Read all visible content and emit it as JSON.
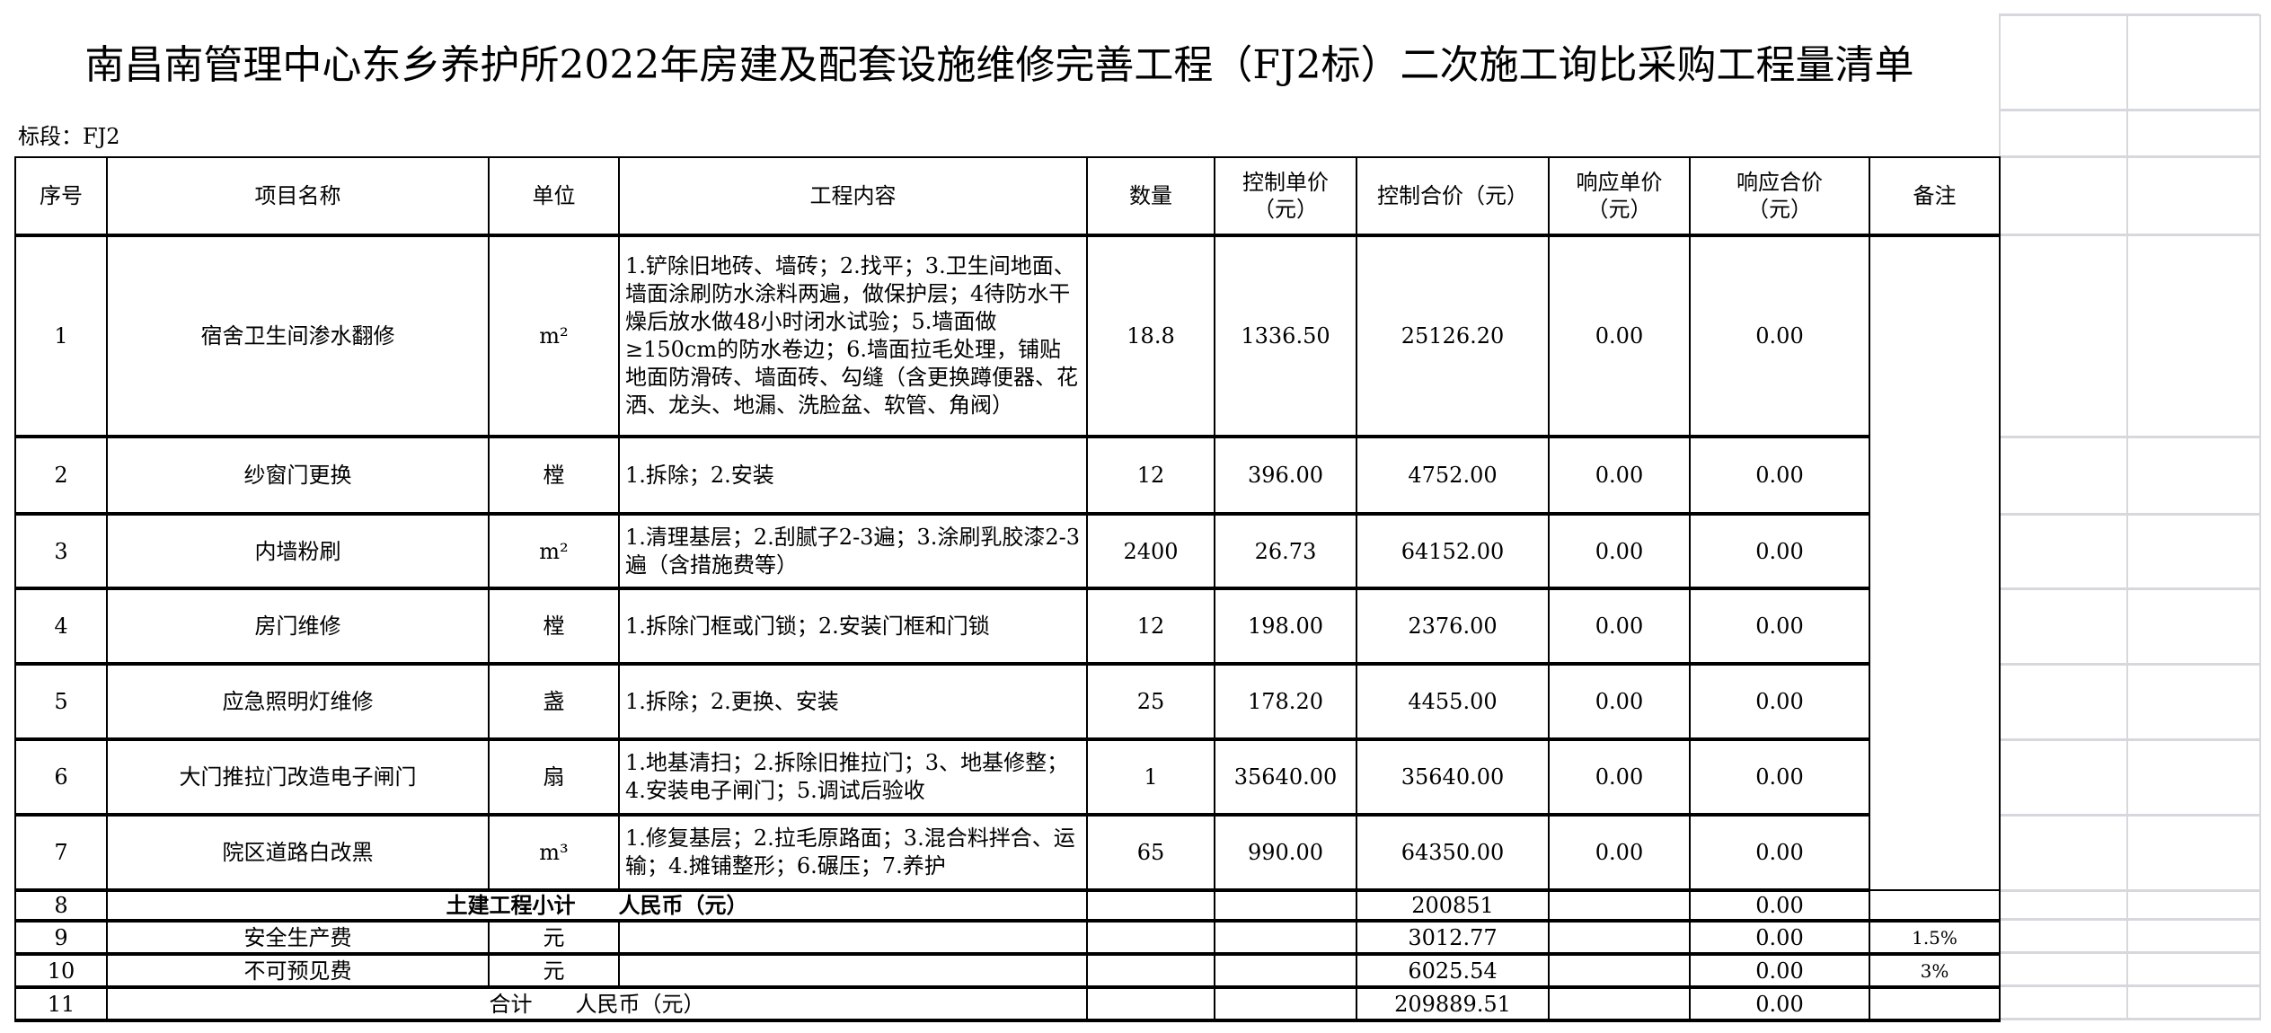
{
  "title": "南昌南管理中心东乡养护所2022年房建及配套设施维修完善工程（FJ2标）二次施工询比采购工程量清单",
  "section_label": "标段：FJ2",
  "headers": [
    "序号",
    "项目名称",
    "单位",
    "工程内容",
    "数量",
    "控制单价（元）",
    "控制合价（元）",
    "响应单价（元）",
    "响应合价（元）",
    "备注"
  ],
  "rows": [
    {
      "no": "1",
      "name": "宿舍卫生间渗水翻修",
      "unit": "m²",
      "desc": "1.铲除旧地砖、墙砖；2.找平；3.卫生间地面、墙面涂刷防水涂料两遍，做保护层；4待防水干燥后放水做48小时闭水试验；5.墙面做≥150cm的防水卷边；6.墙面拉毛处理，铺贴地面防滑砖、墙面砖、勾缝（含更换蹲便器、花洒、龙头、地漏、洗脸盆、软管、角阀）",
      "qty": "18.8",
      "ctrl_price": "1336.50",
      "ctrl_total": "25126.20",
      "resp_price": "0.00",
      "resp_total": "0.00"
    },
    {
      "no": "2",
      "name": "纱窗门更换",
      "unit": "樘",
      "desc": "1.拆除；2.安装",
      "qty": "12",
      "ctrl_price": "396.00",
      "ctrl_total": "4752.00",
      "resp_price": "0.00",
      "resp_total": "0.00"
    },
    {
      "no": "3",
      "name": "内墙粉刷",
      "unit": "m²",
      "desc": "1.清理基层；2.刮腻子2-3遍；3.涂刷乳胶漆2-3遍（含措施费等）",
      "qty": "2400",
      "ctrl_price": "26.73",
      "ctrl_total": "64152.00",
      "resp_price": "0.00",
      "resp_total": "0.00"
    },
    {
      "no": "4",
      "name": "房门维修",
      "unit": "樘",
      "desc": "1.拆除门框或门锁；2.安装门框和门锁",
      "qty": "12",
      "ctrl_price": "198.00",
      "ctrl_total": "2376.00",
      "resp_price": "0.00",
      "resp_total": "0.00"
    },
    {
      "no": "5",
      "name": "应急照明灯维修",
      "unit": "盏",
      "desc": "1.拆除；2.更换、安装",
      "qty": "25",
      "ctrl_price": "178.20",
      "ctrl_total": "4455.00",
      "resp_price": "0.00",
      "resp_total": "0.00"
    },
    {
      "no": "6",
      "name": "大门推拉门改造电子闸门",
      "unit": "扇",
      "desc": "1.地基清扫；2.拆除旧推拉门；3、地基修整；4.安装电子闸门；5.调试后验收",
      "qty": "1",
      "ctrl_price": "35640.00",
      "ctrl_total": "35640.00",
      "resp_price": "0.00",
      "resp_total": "0.00"
    },
    {
      "no": "7",
      "name": "院区道路白改黑",
      "unit": "m³",
      "desc": "1.修复基层；2.拉毛原路面；3.混合料拌合、运输；4.摊铺整形；6.碾压；7.养护",
      "qty": "65",
      "ctrl_price": "990.00",
      "ctrl_total": "64350.00",
      "resp_price": "0.00",
      "resp_total": "0.00"
    }
  ],
  "subtotal": {
    "no": "8",
    "label": "土建工程小计　　人民币（元）",
    "ctrl_total": "200851",
    "resp_total": "0.00"
  },
  "fees": [
    {
      "no": "9",
      "name": "安全生产费",
      "unit": "元",
      "ctrl_total": "3012.77",
      "resp_total": "0.00",
      "remark": "1.5%"
    },
    {
      "no": "10",
      "name": "不可预见费",
      "unit": "元",
      "ctrl_total": "6025.54",
      "resp_total": "0.00",
      "remark": "3%"
    }
  ],
  "total": {
    "no": "11",
    "label": "合计　　人民币（元）",
    "ctrl_total": "209889.51",
    "resp_total": "0.00"
  }
}
